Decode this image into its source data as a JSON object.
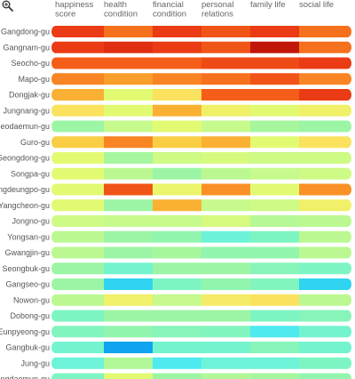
{
  "toolbar": {
    "zoom_icon": "zoom-in-icon"
  },
  "chart_data": {
    "type": "heatmap",
    "columns": [
      [
        "happiness",
        "score"
      ],
      [
        "health",
        "condition"
      ],
      [
        "financial",
        "condition"
      ],
      [
        "personal",
        "relations"
      ],
      [
        "family life"
      ],
      [
        "social life"
      ]
    ],
    "rows": [
      "Gangdong-gu",
      "Gangnam-gu",
      "Seocho-gu",
      "Mapo-gu",
      "Dongjak-gu",
      "Jungnang-gu",
      "Seodaemun-gu",
      "Guro-gu",
      "Seongdong-gu",
      "Songpa-gu",
      "Yeongdeungpo-gu",
      "Yangcheon-gu",
      "Jongno-gu",
      "Yongsan-gu",
      "Gwangjin-gu",
      "Seongbuk-gu",
      "Gangseo-gu",
      "Nowon-gu",
      "Dobong-gu",
      "Eunpyeong-gu",
      "Gangbuk-gu",
      "Jung-gu",
      "Dongdaemun-gu"
    ],
    "color_scale": {
      "stops": [
        "#0a96f0",
        "#1ec8f0",
        "#5af0f0",
        "#78f5c8",
        "#a0f5a0",
        "#c8fa8c",
        "#e6fa6e",
        "#fae664",
        "#fac83c",
        "#fa9628",
        "#f56419",
        "#eb3c14",
        "#d21e0a",
        "#a00a05"
      ],
      "min": 0,
      "max": 1
    },
    "values": [
      [
        0.85,
        0.75,
        0.85,
        0.8,
        0.85,
        0.75
      ],
      [
        0.85,
        0.88,
        0.85,
        0.8,
        0.95,
        0.75
      ],
      [
        0.78,
        0.78,
        0.78,
        0.82,
        0.82,
        0.85
      ],
      [
        0.72,
        0.68,
        0.72,
        0.75,
        0.8,
        0.72
      ],
      [
        0.65,
        0.45,
        0.55,
        0.78,
        0.78,
        0.85
      ],
      [
        0.55,
        0.45,
        0.65,
        0.5,
        0.45,
        0.5
      ],
      [
        0.3,
        0.38,
        0.45,
        0.38,
        0.32,
        0.3
      ],
      [
        0.6,
        0.72,
        0.6,
        0.65,
        0.45,
        0.55
      ],
      [
        0.45,
        0.32,
        0.4,
        0.42,
        0.4,
        0.4
      ],
      [
        0.45,
        0.36,
        0.3,
        0.36,
        0.38,
        0.4
      ],
      [
        0.45,
        0.8,
        0.48,
        0.7,
        0.45,
        0.7
      ],
      [
        0.45,
        0.3,
        0.65,
        0.38,
        0.4,
        0.5
      ],
      [
        0.4,
        0.38,
        0.38,
        0.42,
        0.35,
        0.36
      ],
      [
        0.36,
        0.3,
        0.28,
        0.2,
        0.24,
        0.36
      ],
      [
        0.36,
        0.3,
        0.32,
        0.28,
        0.28,
        0.36
      ],
      [
        0.3,
        0.22,
        0.3,
        0.3,
        0.26,
        0.24
      ],
      [
        0.3,
        0.1,
        0.24,
        0.28,
        0.25,
        0.1
      ],
      [
        0.36,
        0.5,
        0.38,
        0.52,
        0.55,
        0.36
      ],
      [
        0.24,
        0.3,
        0.3,
        0.3,
        0.24,
        0.26
      ],
      [
        0.25,
        0.28,
        0.26,
        0.25,
        0.14,
        0.22
      ],
      [
        0.22,
        0.02,
        0.22,
        0.22,
        0.26,
        0.22
      ],
      [
        0.2,
        0.34,
        0.14,
        0.2,
        0.2,
        0.24
      ],
      [
        0.24,
        0.45,
        0.3,
        0.34,
        0.32,
        0.28
      ]
    ]
  }
}
